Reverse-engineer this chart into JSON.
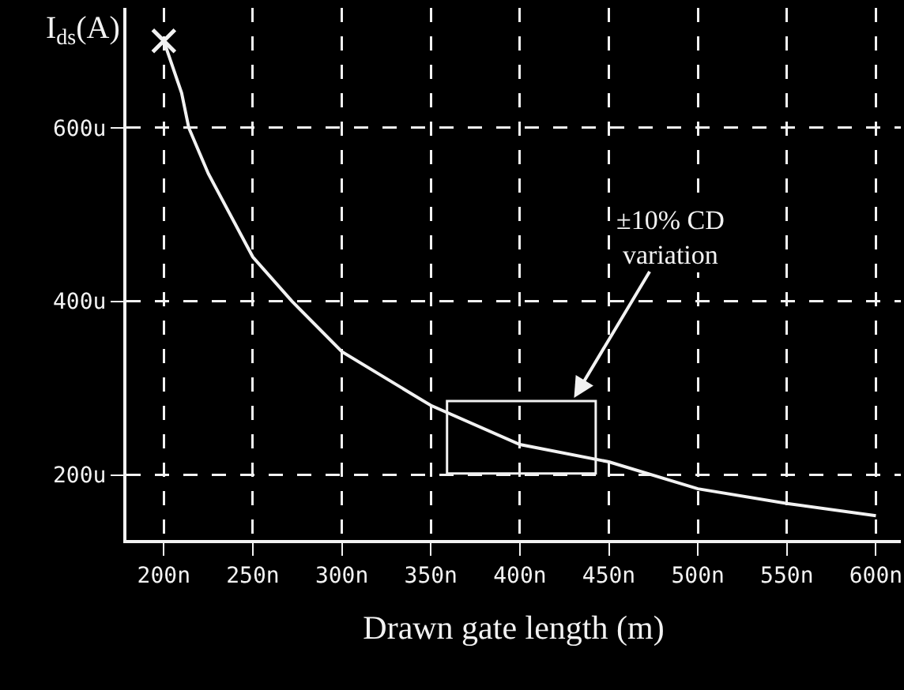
{
  "chart_data": {
    "type": "line",
    "xlabel": "Drawn gate length (m)",
    "ylabel": "I$_{ds}$(A)",
    "x": [
      200,
      210,
      214,
      225,
      250,
      272,
      300,
      350,
      400,
      450,
      500,
      550,
      600
    ],
    "series": [
      {
        "color": "#f2f2f2",
        "values": [
          700,
          640,
          600,
          547,
          451,
          400,
          342,
          280,
          235,
          215,
          184,
          167,
          153
        ]
      },
      {
        "type": "scatter",
        "color": "#f2f2f2",
        "marker": "cross",
        "x": [
          200
        ],
        "values": [
          700
        ]
      }
    ],
    "xlim": [
      179,
      614
    ],
    "ylim": [
      125,
      738
    ],
    "xticks": [
      {
        "value": 200,
        "label": "200n"
      },
      {
        "value": 250,
        "label": "250n"
      },
      {
        "value": 300,
        "label": "300n"
      },
      {
        "value": 350,
        "label": "350n"
      },
      {
        "value": 400,
        "label": "400n"
      },
      {
        "value": 450,
        "label": "450n"
      },
      {
        "value": 500,
        "label": "500n"
      },
      {
        "value": 550,
        "label": "550n"
      },
      {
        "value": 600,
        "label": "600n"
      }
    ],
    "yticks": [
      {
        "value": 200,
        "label": "200u"
      },
      {
        "value": 400,
        "label": "400u"
      },
      {
        "value": 600,
        "label": "600u"
      }
    ],
    "grid": true,
    "marker": "none",
    "line_style": "solid",
    "annotations": [
      "±10% CD\nvariation"
    ]
  }
}
